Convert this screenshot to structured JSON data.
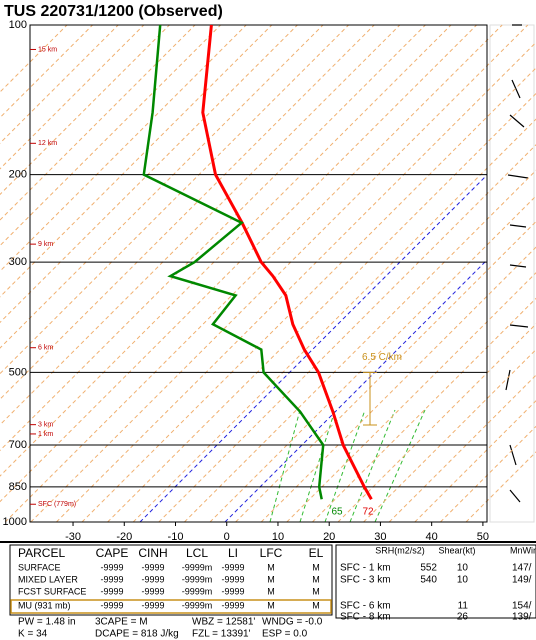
{
  "chart_data": {
    "type": "skewt",
    "title": "TUS  220731/1200  (Observed)",
    "ylim": [
      1000,
      100
    ],
    "log_y": true,
    "yticks": [
      100,
      200,
      300,
      500,
      700,
      850,
      1000
    ],
    "xlim": [
      -38.4,
      50.8
    ],
    "xticks": [
      -30,
      -20,
      -10,
      0,
      10,
      20,
      30,
      40,
      50
    ],
    "pressure": [
      900,
      850,
      700,
      600,
      500,
      450,
      400,
      350,
      320,
      300,
      250,
      200,
      150,
      100
    ],
    "series": [
      {
        "name": "Temperature",
        "color": "#ff0000",
        "values": [
          23.8,
          20,
          7.7,
          -0.8,
          -11.3,
          -18.5,
          -25.7,
          -32.7,
          -39,
          -44,
          -55.4,
          -70,
          -84.6,
          -100
        ]
      },
      {
        "name": "Dewpoint",
        "color": "#008800",
        "values": [
          14.1,
          11.2,
          3.8,
          -7.2,
          -22,
          -26.9,
          -41.3,
          -42.5,
          -59,
          -57,
          -55.5,
          -84,
          -94.4,
          -110
        ]
      }
    ],
    "height_labels": [
      {
        "label": "15 km",
        "p": 112
      },
      {
        "label": "12 km",
        "p": 173
      },
      {
        "label": "9 km",
        "p": 276
      },
      {
        "label": "6 km",
        "p": 446
      },
      {
        "label": "3 km",
        "p": 637
      },
      {
        "label": "1 km",
        "p": 665
      },
      {
        "label": "SFC (779m)",
        "p": 921
      }
    ],
    "lapse_label": "6.5 C/km",
    "surface_dewpoint_label": "65",
    "surface_temp_label": "72"
  },
  "table": {
    "header": [
      "PARCEL",
      "CAPE",
      "CINH",
      "LCL",
      "LI",
      "LFC",
      "EL"
    ],
    "rows": [
      [
        "SURFACE",
        "-9999",
        "-9999",
        "-9999m",
        "-9999",
        "M",
        "M"
      ],
      [
        "MIXED LAYER",
        "-9999",
        "-9999",
        "-9999m",
        "-9999",
        "M",
        "M"
      ],
      [
        "FCST SURFACE",
        "-9999",
        "-9999",
        "-9999m",
        "-9999",
        "M",
        "M"
      ],
      [
        "MU   (931 mb)",
        "-9999",
        "-9999",
        "-9999m",
        "-9999",
        "M",
        "M"
      ]
    ],
    "footer": [
      [
        "PW = 1.48 in",
        "3CAPE = M",
        "WBZ = 12581'",
        "WNDG = -0.0"
      ],
      [
        "K = 34",
        "DCAPE = 818 J/kg",
        "FZL = 13391'",
        "ESP = 0.0"
      ]
    ]
  },
  "kinematics": {
    "header": [
      "SRH(m2/s2)",
      "Shear(kt)",
      "MnWin"
    ],
    "rows": [
      {
        "label": "SFC - 1 km",
        "srh": "552",
        "shear": "10",
        "wind": "147/"
      },
      {
        "label": "SFC - 3 km",
        "srh": "540",
        "shear": "10",
        "wind": "149/"
      },
      {
        "label": "SFC - 6 km",
        "shear": "11",
        "wind": "154/"
      },
      {
        "label": "SFC - 8 km",
        "shear": "26",
        "wind": "139/"
      }
    ]
  }
}
